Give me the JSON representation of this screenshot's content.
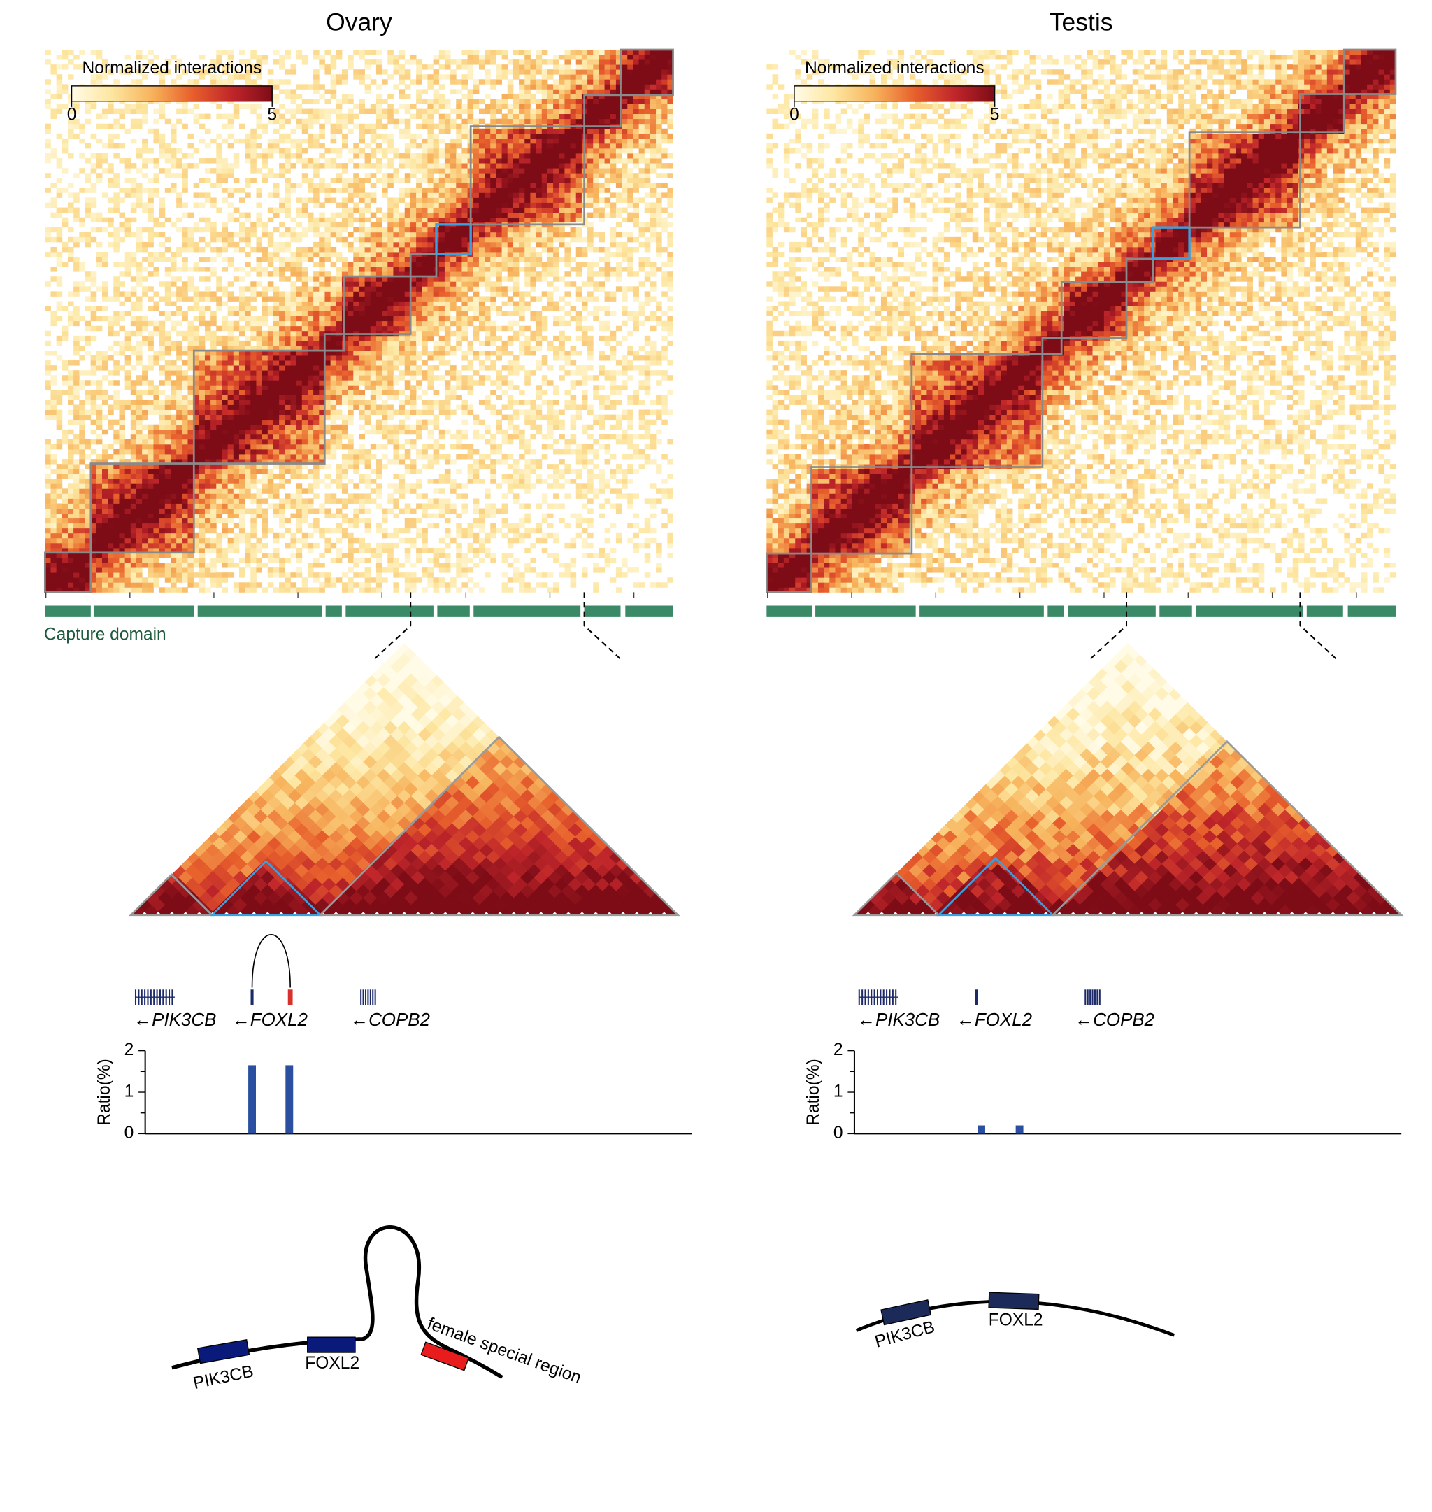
{
  "panels": [
    {
      "title": "Ovary",
      "colorbar": {
        "label": "Normalized interactions",
        "ticks": [
          0,
          5
        ],
        "lim": [
          0,
          5
        ]
      },
      "capture_label": "Capture domain",
      "genes": [
        "←PIK3CB",
        "←FOXL2",
        "←COPB2"
      ],
      "ratio": {
        "ylabel": "Ratio(%)",
        "ylim": [
          0,
          2
        ],
        "yticks": [
          0,
          1,
          2
        ],
        "values": [
          1.65,
          1.65
        ],
        "color": "#2a4fa0"
      },
      "diagram_labels": [
        "PIK3CB",
        "FOXL2",
        "female special region"
      ]
    },
    {
      "title": "Testis",
      "colorbar": {
        "label": "Normalized interactions",
        "ticks": [
          0,
          5
        ],
        "lim": [
          0,
          5
        ]
      },
      "genes": [
        "←PIK3CB",
        "←FOXL2",
        "←COPB2"
      ],
      "ratio": {
        "ylabel": "Ratio(%)",
        "ylim": [
          0,
          2
        ],
        "yticks": [
          0,
          1,
          2
        ],
        "values": [
          0.2,
          0.2
        ],
        "color": "#2a4fa0"
      },
      "diagram_labels": [
        "PIK3CB",
        "FOXL2"
      ]
    }
  ]
}
